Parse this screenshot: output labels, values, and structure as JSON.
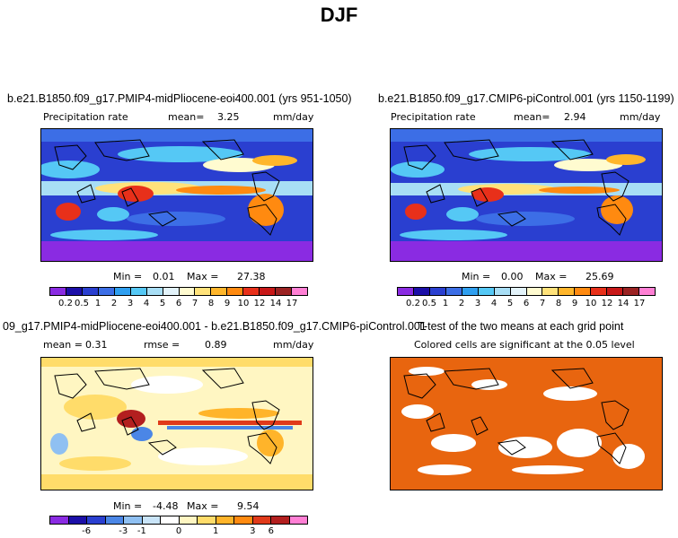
{
  "page_title": "DJF",
  "panels": {
    "top_left": {
      "case_title": "b.e21.B1850.f09_g17.PMIP4-midPliocene-eoi400.001 (yrs 951-1050)",
      "variable": "Precipitation rate",
      "mean_label": "mean=",
      "mean_value": "3.25",
      "units": "mm/day",
      "min_label": "Min =",
      "min_value": "0.01",
      "max_label": "Max =",
      "max_value": "27.38"
    },
    "top_right": {
      "case_title": "b.e21.B1850.f09_g17.CMIP6-piControl.001 (yrs 1150-1199)",
      "variable": "Precipitation rate",
      "mean_label": "mean=",
      "mean_value": "2.94",
      "units": "mm/day",
      "min_label": "Min =",
      "min_value": "0.00",
      "max_label": "Max =",
      "max_value": "25.69"
    },
    "bottom_left": {
      "case_title": "09_g17.PMIP4-midPliocene-eoi400.001 - b.e21.B1850.f09_g17.CMIP6-piControl.001",
      "mean_label": "mean =",
      "mean_value": "0.31",
      "rmse_label": "rmse =",
      "rmse_value": "0.89",
      "units": "mm/day",
      "min_label": "Min =",
      "min_value": "-4.48",
      "max_label": "Max =",
      "max_value": "9.54"
    },
    "bottom_right": {
      "case_title": "T-test of the two means at each grid point",
      "subtitle": "Colored cells are significant at the 0.05 level"
    }
  },
  "colorbars": {
    "precip": {
      "labels": [
        "0.2",
        "0.5",
        "1",
        "2",
        "3",
        "4",
        "5",
        "6",
        "7",
        "8",
        "9",
        "10",
        "12",
        "14",
        "17"
      ],
      "colors": [
        "#8a2be2",
        "#1c0fa8",
        "#2a3fd0",
        "#3c6ee6",
        "#2f9ff0",
        "#55c8f5",
        "#a8def5",
        "#e3f3fa",
        "#fffbd0",
        "#ffe27a",
        "#ffb62b",
        "#ff8a10",
        "#e8301a",
        "#c81818",
        "#9b2323",
        "#ff7fd4"
      ]
    },
    "diff": {
      "labels": [
        "-6",
        "-3",
        "-1",
        "0",
        "1",
        "3",
        "6"
      ],
      "colors": [
        "#8a2be2",
        "#1c0fa8",
        "#2a3fd0",
        "#4b86e6",
        "#8fc0f2",
        "#c9e4f8",
        "#ffffff",
        "#fff6c2",
        "#ffdc6a",
        "#ffb42a",
        "#ff8a10",
        "#e03a1a",
        "#b31f1f",
        "#ff7fd4"
      ]
    }
  },
  "colors": {
    "map_ocean_dry": "#2a3fd0",
    "itcz_wet": "#e8301a",
    "significant": "#e8650f"
  }
}
